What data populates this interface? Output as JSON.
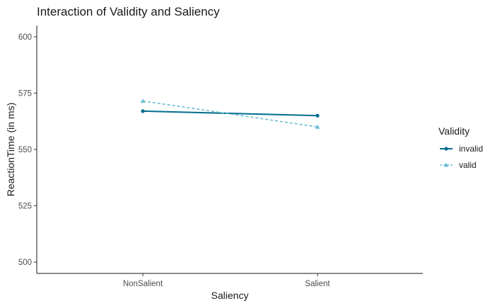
{
  "chart_data": {
    "type": "line",
    "title": "Interaction of Validity and Saliency",
    "xlabel": "Saliency",
    "ylabel": "ReactionTime (in ms)",
    "categories": [
      "NonSalient",
      "Salient"
    ],
    "ylim": [
      495,
      605
    ],
    "yticks": [
      500,
      525,
      550,
      575,
      600
    ],
    "grid": false,
    "legend": {
      "title": "Validity",
      "position": "right"
    },
    "series": [
      {
        "name": "invalid",
        "values": [
          567,
          565
        ],
        "color": "#006d8f",
        "line_style": "solid",
        "marker": "circle"
      },
      {
        "name": "valid",
        "values": [
          571.5,
          560
        ],
        "color": "#6bbdd6",
        "line_style": "dashed",
        "marker": "triangle"
      }
    ]
  }
}
